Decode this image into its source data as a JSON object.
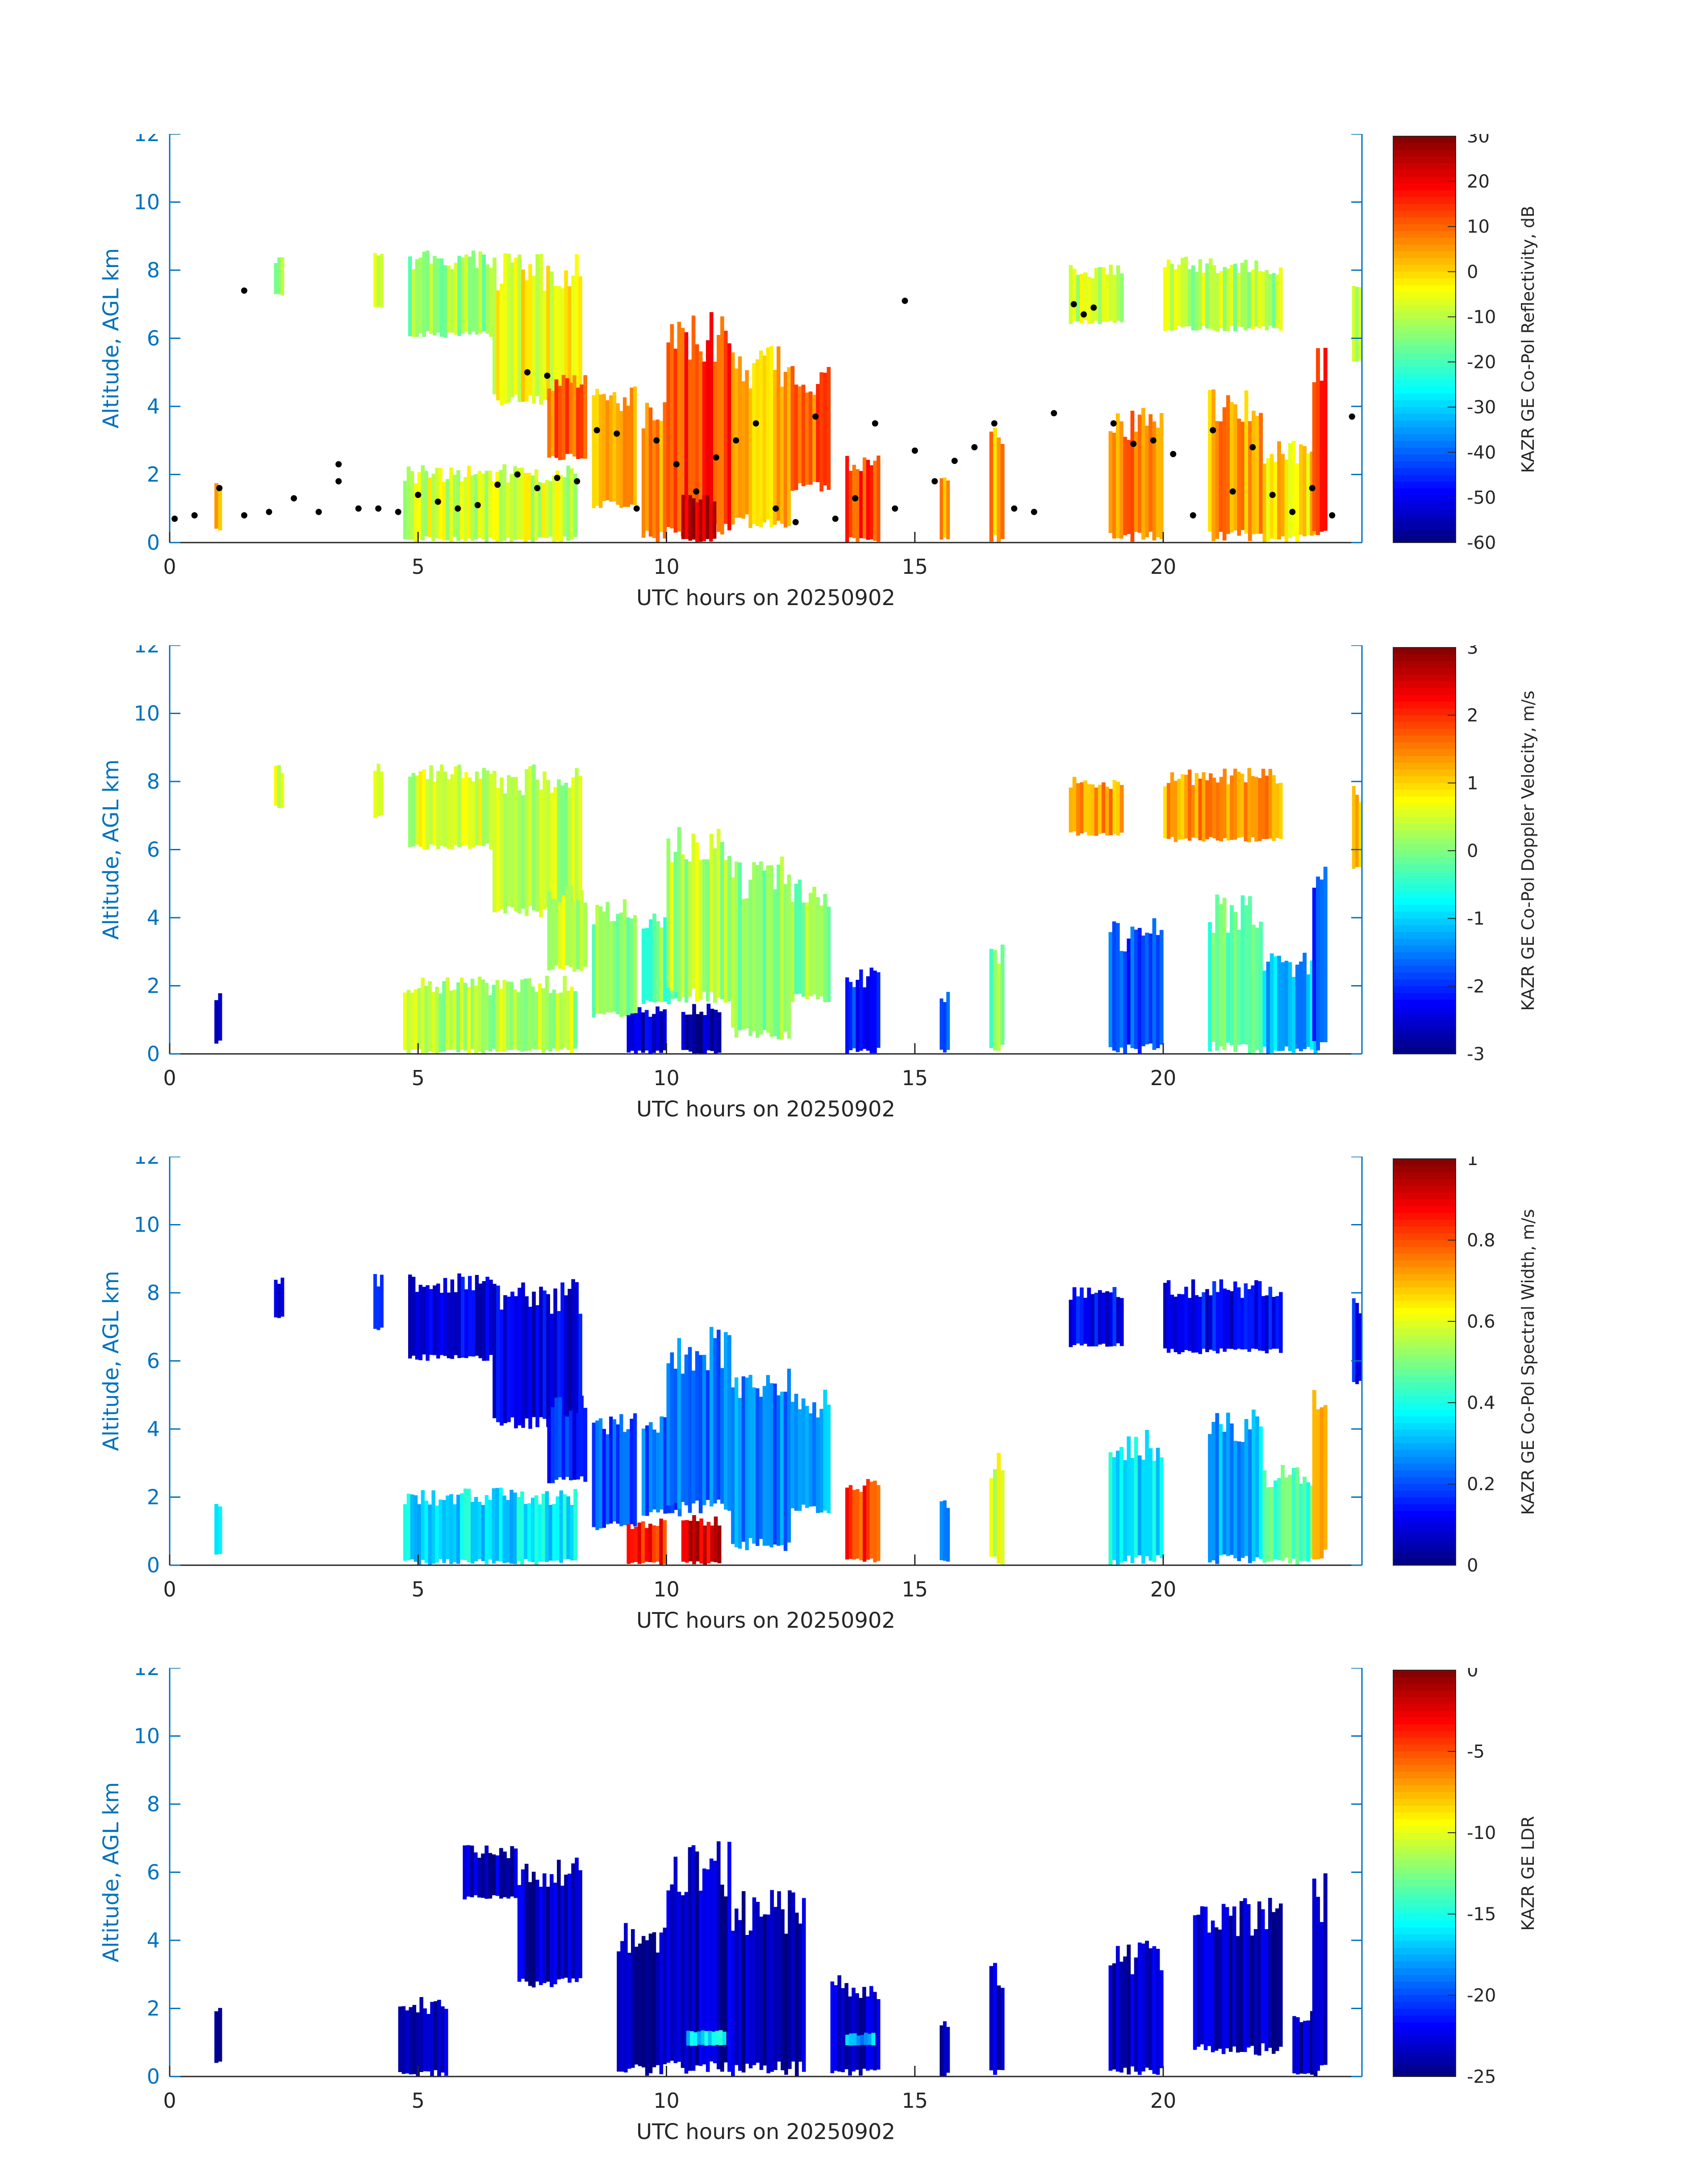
{
  "figure": {
    "date_label": "UTC hours on 20250902"
  },
  "chart_data": [
    {
      "type": "heatmap",
      "title": "",
      "xlabel": "UTC hours on 20250902",
      "ylabel": "Altitude, AGL km",
      "xlim": [
        0,
        24
      ],
      "ylim": [
        0,
        12
      ],
      "xticks": [
        0,
        5,
        10,
        15,
        20
      ],
      "yticks": [
        0,
        2,
        4,
        6,
        8,
        10,
        12
      ],
      "colorbar": {
        "label": "KAZR GE Co-Pol Reflectivity, dB",
        "min": -60,
        "max": 30,
        "ticks": [
          30,
          20,
          10,
          0,
          -10,
          -20,
          -30,
          -40,
          -50,
          -60
        ]
      },
      "overlay": {
        "type": "scatter",
        "color": "#000000",
        "description_points_hours_km": [
          [
            0.1,
            0.7
          ],
          [
            0.5,
            0.8
          ],
          [
            1.0,
            1.6
          ],
          [
            1.5,
            0.8
          ],
          [
            2.0,
            0.9
          ],
          [
            2.5,
            1.3
          ],
          [
            3.0,
            0.9
          ],
          [
            3.4,
            1.8
          ],
          [
            3.8,
            1.0
          ],
          [
            4.2,
            1.0
          ],
          [
            4.6,
            0.9
          ],
          [
            5.0,
            1.4
          ],
          [
            5.4,
            1.2
          ],
          [
            5.8,
            1.0
          ],
          [
            6.2,
            1.1
          ],
          [
            6.6,
            1.7
          ],
          [
            7.0,
            2.0
          ],
          [
            7.4,
            1.6
          ],
          [
            7.8,
            1.9
          ],
          [
            8.2,
            1.8
          ],
          [
            8.6,
            3.3
          ],
          [
            9.0,
            3.2
          ],
          [
            9.4,
            1.0
          ],
          [
            9.8,
            3.0
          ],
          [
            10.2,
            2.3
          ],
          [
            10.6,
            1.5
          ],
          [
            11.0,
            2.5
          ],
          [
            11.4,
            3.0
          ],
          [
            11.8,
            3.5
          ],
          [
            12.2,
            1.0
          ],
          [
            12.6,
            0.6
          ],
          [
            13.0,
            3.7
          ],
          [
            13.4,
            0.7
          ],
          [
            13.8,
            1.3
          ],
          [
            14.2,
            3.5
          ],
          [
            14.6,
            1.0
          ],
          [
            15.0,
            2.7
          ],
          [
            15.4,
            1.8
          ],
          [
            15.8,
            2.4
          ],
          [
            16.2,
            2.8
          ],
          [
            16.6,
            3.5
          ],
          [
            17.0,
            1.0
          ],
          [
            17.4,
            0.9
          ],
          [
            17.8,
            3.8
          ],
          [
            18.2,
            7.0
          ],
          [
            18.6,
            6.9
          ],
          [
            19.0,
            3.5
          ],
          [
            19.4,
            2.9
          ],
          [
            19.8,
            3.0
          ],
          [
            20.2,
            2.6
          ],
          [
            20.6,
            0.8
          ],
          [
            21.0,
            3.3
          ],
          [
            21.4,
            1.5
          ],
          [
            21.8,
            2.8
          ],
          [
            22.2,
            1.4
          ],
          [
            22.6,
            0.9
          ],
          [
            23.0,
            1.6
          ],
          [
            23.4,
            0.8
          ],
          [
            23.8,
            3.7
          ],
          [
            1.5,
            7.4
          ],
          [
            3.4,
            2.3
          ],
          [
            7.2,
            5.0
          ],
          [
            7.6,
            4.9
          ],
          [
            14.8,
            7.1
          ],
          [
            18.4,
            6.7
          ]
        ]
      }
    },
    {
      "type": "heatmap",
      "title": "",
      "xlabel": "UTC hours on 20250902",
      "ylabel": "Altitude, AGL km",
      "xlim": [
        0,
        24
      ],
      "ylim": [
        0,
        12
      ],
      "xticks": [
        0,
        5,
        10,
        15,
        20
      ],
      "yticks": [
        0,
        2,
        4,
        6,
        8,
        10,
        12
      ],
      "colorbar": {
        "label": "KAZR GE Co-Pol Doppler Velocity, m/s",
        "min": -3,
        "max": 3,
        "ticks": [
          3,
          2,
          1,
          0,
          -1,
          -2,
          -3
        ]
      }
    },
    {
      "type": "heatmap",
      "title": "",
      "xlabel": "UTC hours on 20250902",
      "ylabel": "Altitude, AGL km",
      "xlim": [
        0,
        24
      ],
      "ylim": [
        0,
        12
      ],
      "xticks": [
        0,
        5,
        10,
        15,
        20
      ],
      "yticks": [
        0,
        2,
        4,
        6,
        8,
        10,
        12
      ],
      "colorbar": {
        "label": "KAZR GE Co-Pol Spectral Width, m/s",
        "min": 0,
        "max": 1,
        "ticks": [
          1,
          0.8,
          0.6,
          0.4,
          0.2,
          0
        ]
      }
    },
    {
      "type": "heatmap",
      "title": "",
      "xlabel": "UTC hours on 20250902",
      "ylabel": "Altitude, AGL km",
      "xlim": [
        0,
        24
      ],
      "ylim": [
        0,
        12
      ],
      "xticks": [
        0,
        5,
        10,
        15,
        20
      ],
      "yticks": [
        0,
        2,
        4,
        6,
        8,
        10,
        12
      ],
      "colorbar": {
        "label": "KAZR GE LDR",
        "min": -25,
        "max": 0,
        "ticks": [
          0,
          -5,
          -10,
          -15,
          -20,
          -25
        ]
      }
    }
  ],
  "colors": {
    "axis": "#0072bd",
    "tick_text": "#262626",
    "scatter": "#000000"
  }
}
